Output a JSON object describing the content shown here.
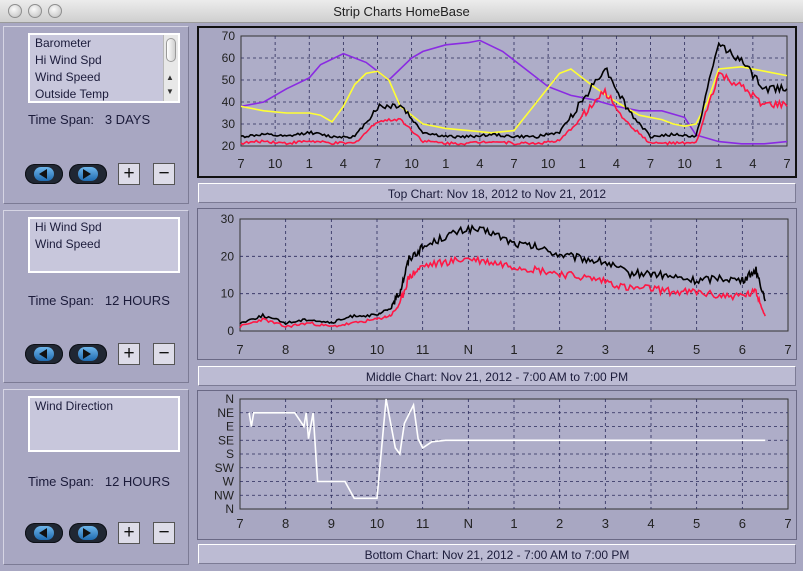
{
  "window": {
    "title": "Strip Charts   HomeBase"
  },
  "colors": {
    "background": "#a8a7c2",
    "plot_bg": "#aeadc8",
    "black_series": "#000000",
    "red_series": "#ff1744",
    "purple_series": "#8a2be2",
    "yellow_series": "#ffff33",
    "white_series": "#ffffff"
  },
  "panels": [
    {
      "list": [
        "Barometer",
        "Hi Wind Spd",
        "Wind Speed",
        "Outside Temp"
      ],
      "has_scrollbar": true,
      "time_span_label": "Time Span:",
      "time_span_value": "3 DAYS",
      "buttons": {
        "prev": "prev-icon",
        "next": "next-icon",
        "zoom_in": "+",
        "zoom_out": "−"
      }
    },
    {
      "list": [
        "Hi Wind Spd",
        "Wind Speed"
      ],
      "has_scrollbar": false,
      "time_span_label": "Time Span:",
      "time_span_value": "12 HOURS",
      "buttons": {
        "prev": "prev-icon",
        "next": "next-icon",
        "zoom_in": "+",
        "zoom_out": "−"
      }
    },
    {
      "list": [
        "Wind Direction"
      ],
      "has_scrollbar": false,
      "time_span_label": "Time Span:",
      "time_span_value": "12 HOURS",
      "buttons": {
        "prev": "prev-icon",
        "next": "next-icon",
        "zoom_in": "+",
        "zoom_out": "−"
      }
    }
  ],
  "captions": [
    "Top Chart:  Nov 18, 2012  to  Nov 21, 2012",
    "Middle Chart:  Nov 21, 2012 - 7:00 AM  to  7:00 PM",
    "Bottom Chart:  Nov 21, 2012 - 7:00 AM  to  7:00 PM"
  ],
  "chart_data": [
    {
      "type": "line",
      "title": "",
      "xlabel": "",
      "ylabel": "",
      "x_ticks": [
        "7",
        "10",
        "1",
        "4",
        "7",
        "10",
        "1",
        "4",
        "7",
        "10",
        "1",
        "4",
        "7",
        "10",
        "1",
        "4",
        "7"
      ],
      "y_ticks": [
        20,
        30,
        40,
        50,
        60,
        70
      ],
      "ylim": [
        20,
        70
      ],
      "grid": true,
      "series": [
        {
          "color": "purple",
          "x": [
            0,
            2,
            4,
            6,
            7,
            9,
            11,
            13,
            15,
            16,
            18,
            20,
            21,
            23,
            25,
            27,
            29,
            31,
            33,
            35,
            37,
            39,
            40,
            42,
            44,
            46,
            48
          ],
          "y": [
            38,
            40,
            46,
            51,
            57,
            62,
            58,
            50,
            60,
            63,
            66,
            67,
            68,
            63,
            55,
            47,
            43,
            41,
            38,
            36,
            36,
            33,
            25,
            22,
            21,
            21,
            22
          ]
        },
        {
          "color": "yellow",
          "x": [
            0,
            2,
            4,
            6,
            7,
            8,
            9,
            10,
            11,
            12,
            13,
            14,
            16,
            18,
            20,
            22,
            24,
            26,
            28,
            29,
            31,
            33,
            35,
            37,
            38,
            39,
            40,
            41,
            42,
            44,
            46,
            48
          ],
          "y": [
            38,
            36,
            35,
            35,
            34,
            31,
            38,
            48,
            53,
            54,
            50,
            38,
            30,
            28,
            27,
            26,
            27,
            40,
            53,
            55,
            47,
            40,
            34,
            32,
            30,
            29,
            30,
            40,
            55,
            56,
            54,
            52
          ]
        },
        {
          "color": "black",
          "x": [
            0,
            2,
            4,
            6,
            8,
            10,
            12,
            14,
            16,
            18,
            20,
            22,
            24,
            26,
            28,
            30,
            32,
            34,
            36,
            38,
            40,
            42,
            44,
            46,
            48
          ],
          "y": [
            24,
            25,
            24,
            26,
            24,
            24,
            37,
            38,
            26,
            24,
            24,
            25,
            24,
            24,
            26,
            40,
            55,
            36,
            24,
            25,
            24,
            66,
            58,
            45,
            46
          ]
        },
        {
          "color": "red",
          "x": [
            0,
            2,
            4,
            6,
            8,
            10,
            12,
            14,
            16,
            18,
            20,
            22,
            24,
            26,
            28,
            30,
            32,
            34,
            36,
            38,
            40,
            42,
            44,
            46,
            48
          ],
          "y": [
            21,
            22,
            21,
            22,
            21,
            21,
            31,
            32,
            22,
            21,
            21,
            22,
            21,
            21,
            22,
            33,
            44,
            30,
            21,
            21,
            21,
            52,
            46,
            38,
            38
          ]
        }
      ]
    },
    {
      "type": "line",
      "title": "",
      "xlabel": "",
      "ylabel": "",
      "x_ticks": [
        "7",
        "8",
        "9",
        "10",
        "11",
        "N",
        "1",
        "2",
        "3",
        "4",
        "5",
        "6",
        "7"
      ],
      "y_ticks": [
        0,
        10,
        20,
        30
      ],
      "ylim": [
        0,
        30
      ],
      "grid": true,
      "series": [
        {
          "color": "black",
          "x": [
            0,
            0.5,
            1,
            1.5,
            2,
            2.5,
            3,
            3.3,
            3.5,
            3.7,
            4,
            4.5,
            5,
            5.5,
            6,
            6.5,
            7,
            7.5,
            8,
            8.5,
            9,
            9.5,
            10,
            10.5,
            11,
            11.3,
            11.5
          ],
          "y": [
            2,
            4,
            2,
            3,
            2,
            4,
            4,
            6,
            10,
            19,
            22,
            25,
            27,
            26,
            23,
            22,
            20,
            19,
            18,
            15,
            15,
            14,
            13,
            14,
            13,
            16,
            8
          ]
        },
        {
          "color": "red",
          "x": [
            0,
            0.5,
            1,
            1.5,
            2,
            2.5,
            3,
            3.3,
            3.5,
            3.7,
            4,
            4.5,
            5,
            5.5,
            6,
            6.5,
            7,
            7.5,
            8,
            8.5,
            9,
            9.5,
            10,
            10.5,
            11,
            11.3,
            11.5
          ],
          "y": [
            1,
            3,
            1,
            2,
            1,
            2,
            3,
            4,
            7,
            14,
            17,
            18,
            19,
            18,
            17,
            16,
            15,
            14,
            13,
            11,
            11,
            10,
            10,
            9,
            9,
            10,
            4
          ]
        }
      ]
    },
    {
      "type": "line",
      "title": "",
      "xlabel": "",
      "ylabel": "",
      "x_ticks": [
        "7",
        "8",
        "9",
        "10",
        "11",
        "N",
        "1",
        "2",
        "3",
        "4",
        "5",
        "6",
        "7"
      ],
      "y_ticks": [
        "N",
        "NW",
        "W",
        "SW",
        "S",
        "SE",
        "E",
        "NE",
        "N"
      ],
      "grid": true,
      "series": [
        {
          "color": "white",
          "x": [
            0.2,
            0.25,
            0.3,
            1.2,
            1.4,
            1.45,
            1.5,
            1.6,
            1.7,
            2.0,
            2.2,
            2.3,
            2.5,
            2.7,
            3.0,
            3.2,
            3.4,
            3.5,
            3.6,
            3.8,
            3.9,
            4.0,
            4.2,
            4.5,
            5.0,
            6.0,
            7.0,
            8.0,
            9.0,
            10.0,
            11.0,
            11.5
          ],
          "y": [
            315,
            270,
            315,
            315,
            270,
            315,
            230,
            315,
            90,
            90,
            90,
            90,
            35,
            35,
            35,
            0,
            200,
            180,
            280,
            340,
            230,
            200,
            220,
            225,
            225,
            225,
            225,
            225,
            225,
            225,
            225,
            225
          ]
        }
      ]
    }
  ]
}
